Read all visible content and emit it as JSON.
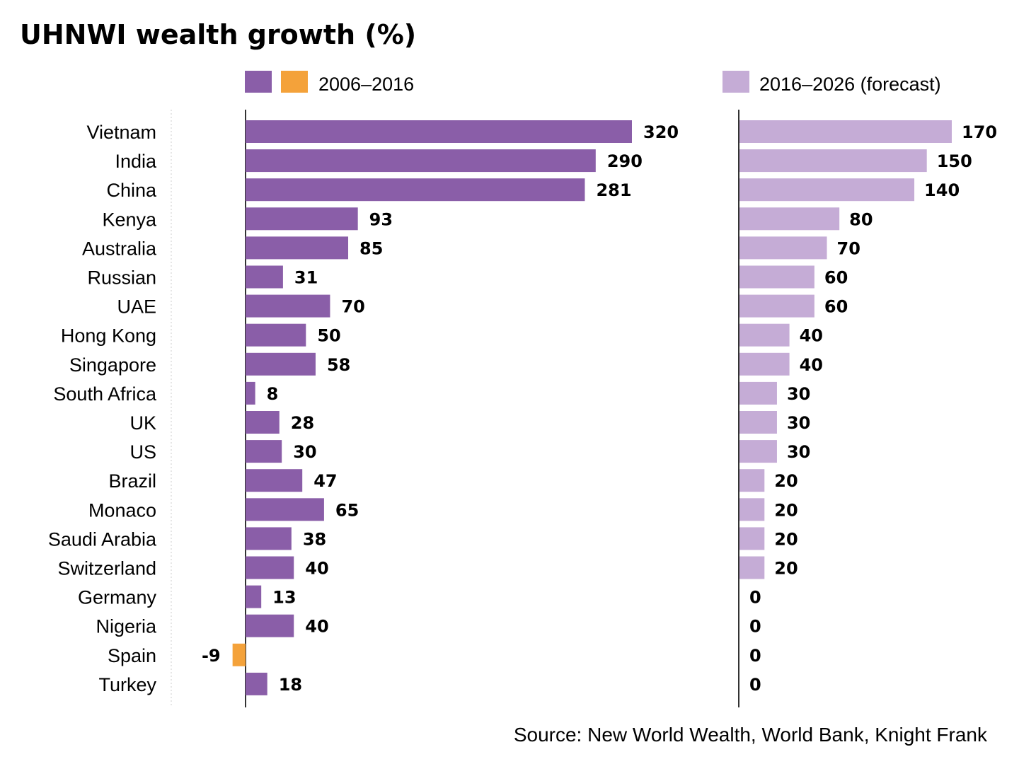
{
  "chart_data": {
    "type": "bar",
    "title": "UHNWI wealth growth (%)",
    "source": "Source: New World Wealth, World Bank, Knight Frank",
    "categories": [
      "Vietnam",
      "India",
      "China",
      "Kenya",
      "Australia",
      "Russian",
      "UAE",
      "Hong Kong",
      "Singapore",
      "South Africa",
      "UK",
      "US",
      "Brazil",
      "Monaco",
      "Saudi Arabia",
      "Switzerland",
      "Germany",
      "Nigeria",
      "Spain",
      "Turkey"
    ],
    "series": [
      {
        "name": "2006–2016",
        "values": [
          320,
          290,
          281,
          93,
          85,
          31,
          70,
          50,
          58,
          8,
          28,
          30,
          47,
          65,
          38,
          40,
          13,
          40,
          -9,
          18
        ],
        "color": "#8a5ea8",
        "negative_color": "#f4a23a"
      },
      {
        "name": "2016–2026 (forecast)",
        "values": [
          170,
          150,
          140,
          80,
          70,
          60,
          60,
          40,
          40,
          30,
          30,
          30,
          20,
          20,
          20,
          20,
          0,
          0,
          0,
          0
        ],
        "color": "#c5acd6"
      }
    ],
    "legend": {
      "placement": "top",
      "labels": [
        "2006–2016",
        "2016–2026 (forecast)"
      ]
    },
    "grid": false
  }
}
